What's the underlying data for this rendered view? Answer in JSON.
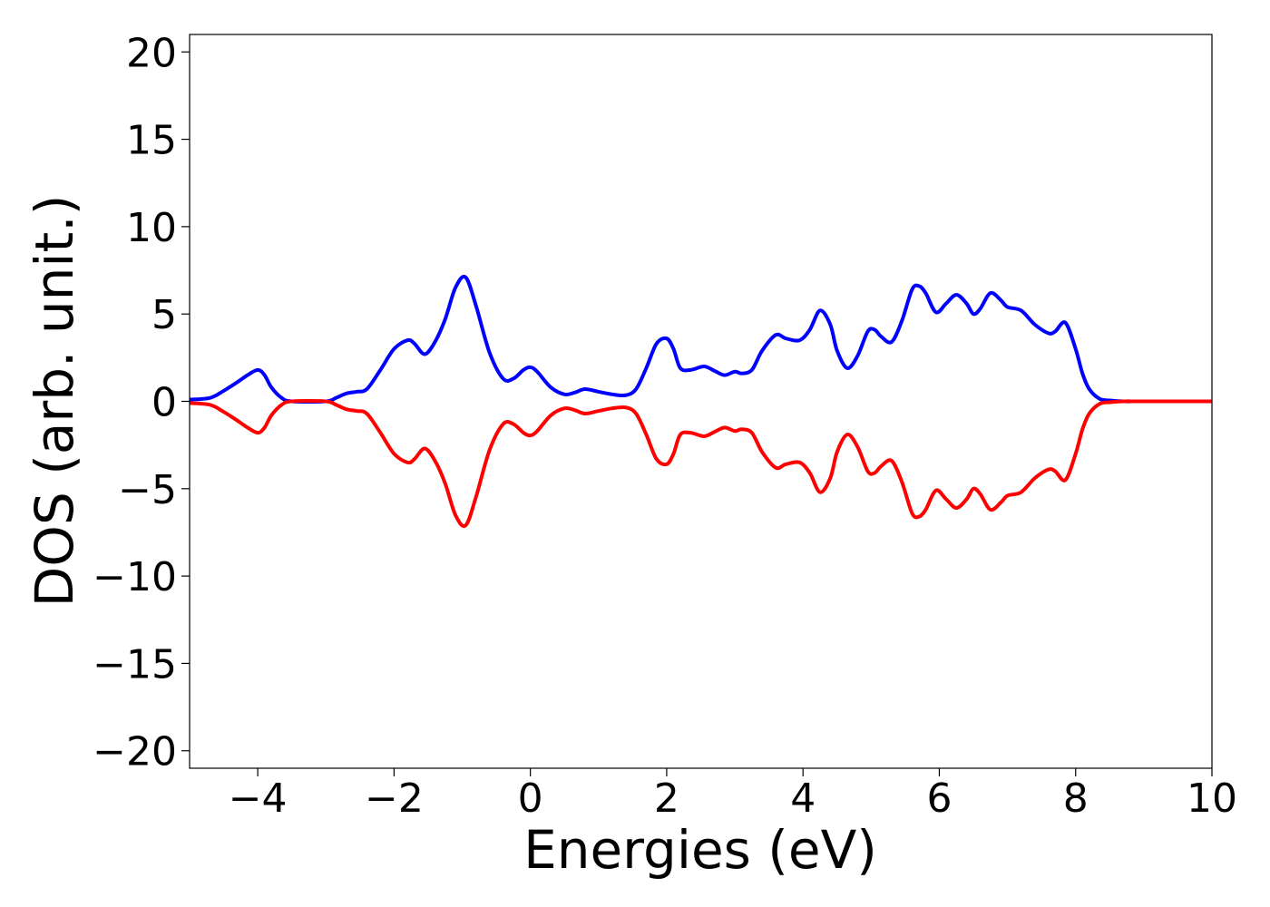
{
  "chart_data": {
    "type": "line",
    "xlabel": "Energies (eV)",
    "ylabel": "DOS (arb. unit.)",
    "xlim": [
      -5,
      10
    ],
    "ylim": [
      -21,
      21
    ],
    "xticks": [
      -4,
      -2,
      0,
      2,
      4,
      6,
      8,
      10
    ],
    "yticks": [
      -20,
      -15,
      -10,
      -5,
      0,
      5,
      10,
      15,
      20
    ],
    "xtick_labels": [
      "−4",
      "−2",
      "0",
      "2",
      "4",
      "6",
      "8",
      "10"
    ],
    "ytick_labels": [
      "−20",
      "−15",
      "−10",
      "−5",
      "0",
      "5",
      "10",
      "15",
      "20"
    ],
    "grid": false,
    "series": [
      {
        "color": "#0000ff",
        "x": [
          -5.0,
          -4.7,
          -4.5,
          -4.3,
          -4.15,
          -4.0,
          -3.9,
          -3.8,
          -3.65,
          -3.5,
          -3.0,
          -2.85,
          -2.7,
          -2.55,
          -2.4,
          -2.2,
          -2.0,
          -1.8,
          -1.7,
          -1.55,
          -1.4,
          -1.25,
          -1.1,
          -0.95,
          -0.8,
          -0.6,
          -0.4,
          -0.25,
          -0.1,
          0.0,
          0.1,
          0.3,
          0.5,
          0.65,
          0.8,
          1.0,
          1.2,
          1.4,
          1.55,
          1.7,
          1.85,
          2.0,
          2.1,
          2.2,
          2.35,
          2.55,
          2.7,
          2.85,
          3.0,
          3.1,
          3.25,
          3.4,
          3.6,
          3.75,
          3.95,
          4.1,
          4.25,
          4.4,
          4.5,
          4.65,
          4.8,
          4.95,
          5.05,
          5.15,
          5.3,
          5.45,
          5.6,
          5.7,
          5.8,
          5.95,
          6.1,
          6.25,
          6.4,
          6.5,
          6.6,
          6.75,
          6.9,
          7.0,
          7.2,
          7.4,
          7.6,
          7.7,
          7.85,
          8.0,
          8.1,
          8.2,
          8.35,
          8.5,
          8.7,
          9.0,
          10.0
        ],
        "y": [
          0.1,
          0.2,
          0.6,
          1.1,
          1.5,
          1.8,
          1.5,
          0.8,
          0.2,
          0.0,
          0.0,
          0.2,
          0.45,
          0.55,
          0.7,
          1.8,
          3.0,
          3.5,
          3.3,
          2.7,
          3.4,
          4.7,
          6.5,
          7.1,
          5.5,
          2.8,
          1.3,
          1.3,
          1.8,
          1.95,
          1.7,
          0.8,
          0.4,
          0.5,
          0.7,
          0.55,
          0.4,
          0.35,
          0.7,
          1.9,
          3.3,
          3.6,
          3.0,
          1.9,
          1.8,
          2.0,
          1.75,
          1.5,
          1.7,
          1.6,
          1.8,
          2.9,
          3.8,
          3.6,
          3.5,
          4.1,
          5.2,
          4.4,
          2.9,
          1.9,
          2.6,
          4.0,
          4.1,
          3.7,
          3.4,
          4.6,
          6.4,
          6.6,
          6.2,
          5.1,
          5.6,
          6.1,
          5.6,
          5.0,
          5.3,
          6.2,
          5.8,
          5.4,
          5.2,
          4.4,
          3.9,
          4.0,
          4.5,
          3.0,
          1.6,
          0.7,
          0.15,
          0.05,
          0.0,
          0.0,
          0.0
        ]
      },
      {
        "color": "#ff0000",
        "x": [
          -5.0,
          -4.7,
          -4.5,
          -4.3,
          -4.15,
          -4.0,
          -3.9,
          -3.8,
          -3.65,
          -3.5,
          -3.0,
          -2.85,
          -2.7,
          -2.55,
          -2.4,
          -2.2,
          -2.0,
          -1.8,
          -1.7,
          -1.55,
          -1.4,
          -1.25,
          -1.1,
          -0.95,
          -0.8,
          -0.6,
          -0.4,
          -0.25,
          -0.1,
          0.0,
          0.1,
          0.3,
          0.5,
          0.65,
          0.8,
          1.0,
          1.2,
          1.4,
          1.55,
          1.7,
          1.85,
          2.0,
          2.1,
          2.2,
          2.35,
          2.55,
          2.7,
          2.85,
          3.0,
          3.1,
          3.25,
          3.4,
          3.6,
          3.75,
          3.95,
          4.1,
          4.25,
          4.4,
          4.5,
          4.65,
          4.8,
          4.95,
          5.05,
          5.15,
          5.3,
          5.45,
          5.6,
          5.7,
          5.8,
          5.95,
          6.1,
          6.25,
          6.4,
          6.5,
          6.6,
          6.75,
          6.9,
          7.0,
          7.2,
          7.4,
          7.6,
          7.7,
          7.85,
          8.0,
          8.1,
          8.2,
          8.35,
          8.5,
          8.7,
          9.0,
          10.0
        ],
        "y": [
          -0.1,
          -0.2,
          -0.6,
          -1.1,
          -1.5,
          -1.8,
          -1.5,
          -0.8,
          -0.2,
          0.0,
          0.0,
          -0.2,
          -0.45,
          -0.55,
          -0.7,
          -1.8,
          -3.0,
          -3.5,
          -3.3,
          -2.7,
          -3.4,
          -4.7,
          -6.5,
          -7.1,
          -5.5,
          -2.8,
          -1.3,
          -1.3,
          -1.8,
          -1.95,
          -1.7,
          -0.8,
          -0.4,
          -0.5,
          -0.7,
          -0.55,
          -0.4,
          -0.35,
          -0.7,
          -1.9,
          -3.3,
          -3.6,
          -3.0,
          -1.9,
          -1.8,
          -2.0,
          -1.75,
          -1.5,
          -1.7,
          -1.6,
          -1.8,
          -2.9,
          -3.8,
          -3.6,
          -3.5,
          -4.1,
          -5.2,
          -4.4,
          -2.9,
          -1.9,
          -2.6,
          -4.0,
          -4.1,
          -3.7,
          -3.4,
          -4.6,
          -6.4,
          -6.6,
          -6.2,
          -5.1,
          -5.6,
          -6.1,
          -5.6,
          -5.0,
          -5.3,
          -6.2,
          -5.8,
          -5.4,
          -5.2,
          -4.4,
          -3.9,
          -4.0,
          -4.5,
          -3.0,
          -1.6,
          -0.7,
          -0.15,
          -0.05,
          0.0,
          0.0,
          0.0
        ]
      }
    ]
  }
}
